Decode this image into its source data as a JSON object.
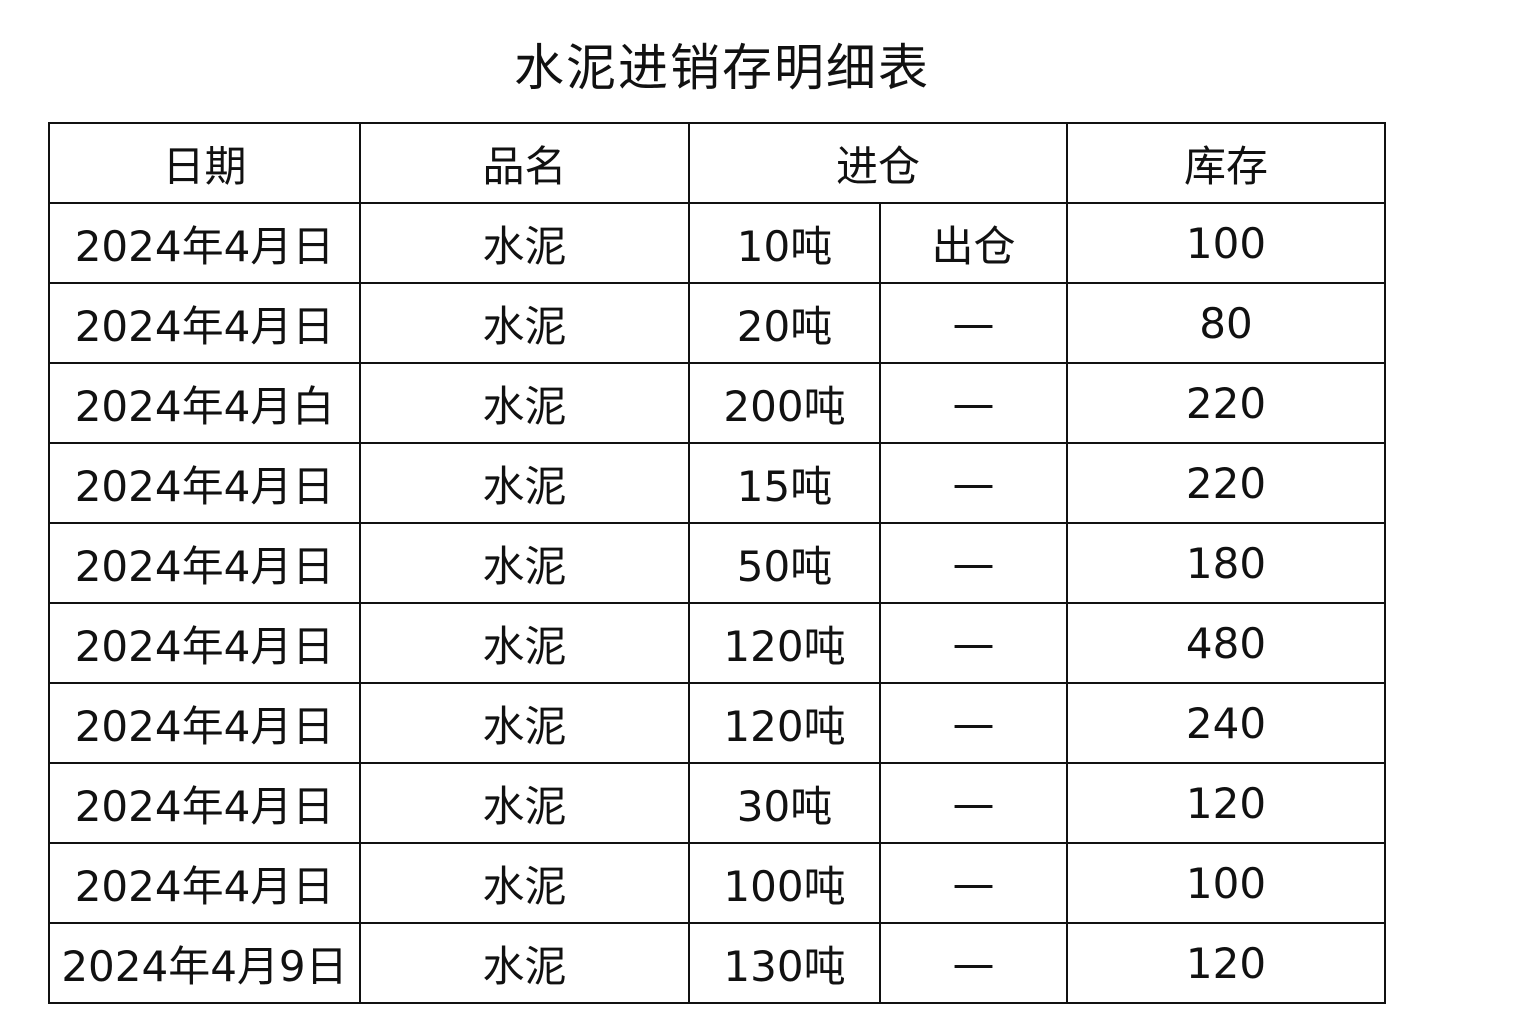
{
  "title": "水泥进销存明细表",
  "header": {
    "date": "日期",
    "name": "品名",
    "in": "进仓",
    "stock": "库存"
  },
  "sub_header_out": "出仓",
  "rows": [
    {
      "date": "2024年4月日",
      "name": "水泥",
      "in": "10吨",
      "out": "出仓",
      "stock": "100"
    },
    {
      "date": "2024年4月日",
      "name": "水泥",
      "in": "20吨",
      "out": "—",
      "stock": "80"
    },
    {
      "date": "2024年4月白",
      "name": "水泥",
      "in": "200吨",
      "out": "—",
      "stock": "220"
    },
    {
      "date": "2024年4月日",
      "name": "水泥",
      "in": "15吨",
      "out": "—",
      "stock": "220"
    },
    {
      "date": "2024年4月日",
      "name": "水泥",
      "in": "50吨",
      "out": "—",
      "stock": "180"
    },
    {
      "date": "2024年4月日",
      "name": "水泥",
      "in": "120吨",
      "out": "—",
      "stock": "480"
    },
    {
      "date": "2024年4月日",
      "name": "水泥",
      "in": "120吨",
      "out": "—",
      "stock": "240"
    },
    {
      "date": "2024年4月日",
      "name": "水泥",
      "in": "30吨",
      "out": "—",
      "stock": "120"
    },
    {
      "date": "2024年4月日",
      "name": "水泥",
      "in": "100吨",
      "out": "—",
      "stock": "100"
    },
    {
      "date": "2024年4月9日",
      "name": "水泥",
      "in": "130吨",
      "out": "—",
      "stock": "120"
    }
  ]
}
